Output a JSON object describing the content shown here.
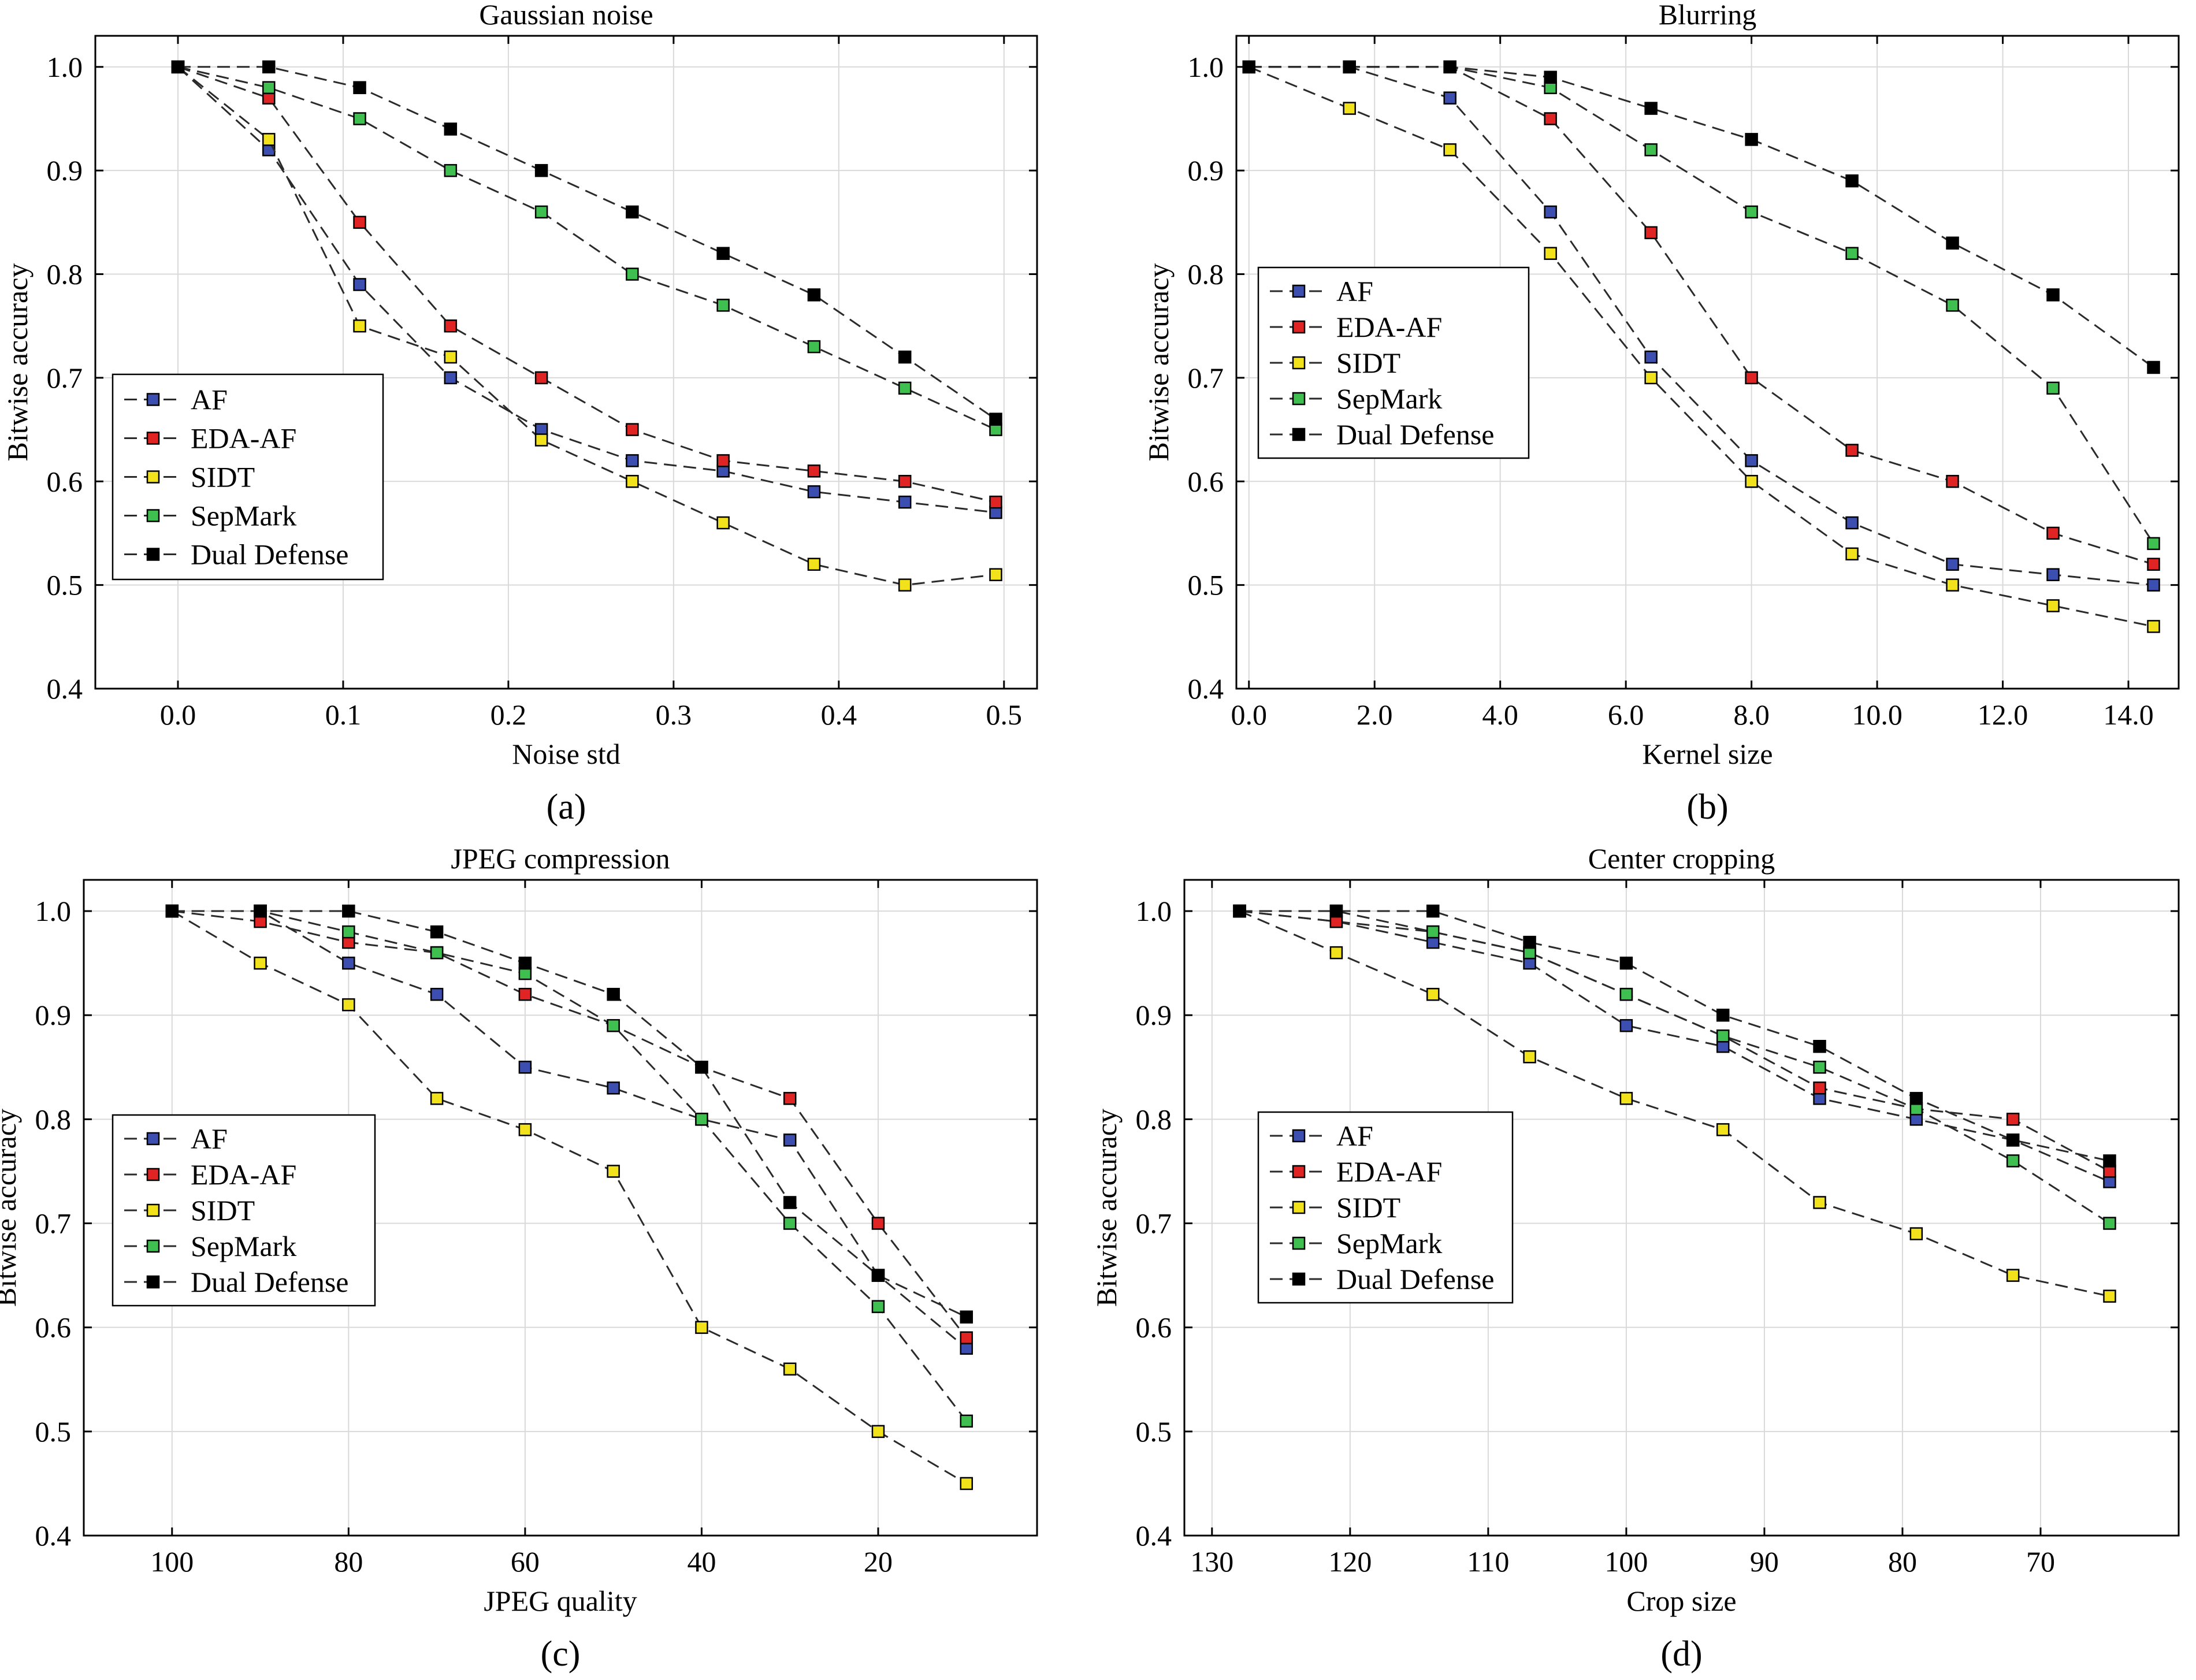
{
  "colors": {
    "AF": "#3c4fb0",
    "EDA-AF": "#e02424",
    "SIDT": "#f2e21c",
    "SepMark": "#3fbf4f",
    "Dual Defense": "#000000"
  },
  "chart_data": [
    {
      "type": "line",
      "title": "Gaussian noise",
      "xlabel": "Noise std",
      "ylabel": "Bitwise accuracy",
      "caption": "(a)",
      "xlim": [
        -0.05,
        0.52
      ],
      "ylim": [
        0.4,
        1.03
      ],
      "xticks": [
        0.0,
        0.1,
        0.2,
        0.3,
        0.4,
        0.5
      ],
      "xtick_labels": [
        "0.0",
        "0.1",
        "0.2",
        "0.3",
        "0.4",
        "0.5"
      ],
      "yticks": [
        0.4,
        0.5,
        0.6,
        0.7,
        0.8,
        0.9,
        1.0
      ],
      "ytick_labels": [
        "0.4",
        "0.5",
        "0.6",
        "0.7",
        "0.8",
        "0.9",
        "1.0"
      ],
      "grid": true,
      "legend_position": "lower-left",
      "x": [
        0.0,
        0.055,
        0.11,
        0.165,
        0.22,
        0.275,
        0.33,
        0.385,
        0.44,
        0.495
      ],
      "series": [
        {
          "name": "AF",
          "values": [
            1.0,
            0.92,
            0.79,
            0.7,
            0.65,
            0.62,
            0.61,
            0.59,
            0.58,
            0.57
          ]
        },
        {
          "name": "EDA-AF",
          "values": [
            1.0,
            0.97,
            0.85,
            0.75,
            0.7,
            0.65,
            0.62,
            0.61,
            0.6,
            0.58
          ]
        },
        {
          "name": "SIDT",
          "values": [
            1.0,
            0.93,
            0.75,
            0.72,
            0.64,
            0.6,
            0.56,
            0.52,
            0.5,
            0.51
          ]
        },
        {
          "name": "SepMark",
          "values": [
            1.0,
            0.98,
            0.95,
            0.9,
            0.86,
            0.8,
            0.77,
            0.73,
            0.69,
            0.65
          ]
        },
        {
          "name": "Dual Defense",
          "values": [
            1.0,
            1.0,
            0.98,
            0.94,
            0.9,
            0.86,
            0.82,
            0.78,
            0.72,
            0.66
          ]
        }
      ]
    },
    {
      "type": "line",
      "title": "Blurring",
      "xlabel": "Kernel size",
      "ylabel": "Bitwise accuracy",
      "caption": "(b)",
      "xlim": [
        -0.2,
        14.8
      ],
      "ylim": [
        0.4,
        1.03
      ],
      "xticks": [
        0,
        2,
        4,
        6,
        8,
        10,
        12,
        14
      ],
      "xtick_labels": [
        "0.0",
        "2.0",
        "4.0",
        "6.0",
        "8.0",
        "10.0",
        "12.0",
        "14.0"
      ],
      "yticks": [
        0.4,
        0.5,
        0.6,
        0.7,
        0.8,
        0.9,
        1.0
      ],
      "ytick_labels": [
        "0.4",
        "0.5",
        "0.6",
        "0.7",
        "0.8",
        "0.9",
        "1.0"
      ],
      "grid": true,
      "legend_position": "middle-left",
      "x": [
        0,
        1.6,
        3.2,
        4.8,
        6.4,
        8.0,
        9.6,
        11.2,
        12.8,
        14.4
      ],
      "series": [
        {
          "name": "AF",
          "values": [
            1.0,
            1.0,
            0.97,
            0.86,
            0.72,
            0.62,
            0.56,
            0.52,
            0.51,
            0.5
          ]
        },
        {
          "name": "EDA-AF",
          "values": [
            1.0,
            1.0,
            1.0,
            0.95,
            0.84,
            0.7,
            0.63,
            0.6,
            0.55,
            0.52
          ]
        },
        {
          "name": "SIDT",
          "values": [
            1.0,
            0.96,
            0.92,
            0.82,
            0.7,
            0.6,
            0.53,
            0.5,
            0.48,
            0.46
          ]
        },
        {
          "name": "SepMark",
          "values": [
            1.0,
            1.0,
            1.0,
            0.98,
            0.92,
            0.86,
            0.82,
            0.77,
            0.69,
            0.54
          ]
        },
        {
          "name": "Dual Defense",
          "values": [
            1.0,
            1.0,
            1.0,
            0.99,
            0.96,
            0.93,
            0.89,
            0.83,
            0.78,
            0.71
          ]
        }
      ]
    },
    {
      "type": "line",
      "title": "JPEG compression",
      "xlabel": "JPEG quality",
      "ylabel": "Bitwise accuracy",
      "caption": "(c)",
      "xlim": [
        110,
        2
      ],
      "ylim": [
        0.4,
        1.03
      ],
      "xticks": [
        100,
        80,
        60,
        40,
        20
      ],
      "xtick_labels": [
        "100",
        "80",
        "60",
        "40",
        "20"
      ],
      "yticks": [
        0.4,
        0.5,
        0.6,
        0.7,
        0.8,
        0.9,
        1.0
      ],
      "ytick_labels": [
        "0.4",
        "0.5",
        "0.6",
        "0.7",
        "0.8",
        "0.9",
        "1.0"
      ],
      "grid": true,
      "legend_position": "lower-left",
      "x": [
        100,
        90,
        80,
        70,
        60,
        50,
        40,
        30,
        20,
        10
      ],
      "series": [
        {
          "name": "AF",
          "values": [
            1.0,
            1.0,
            0.95,
            0.92,
            0.85,
            0.83,
            0.8,
            0.78,
            0.65,
            0.58
          ]
        },
        {
          "name": "EDA-AF",
          "values": [
            1.0,
            0.99,
            0.97,
            0.96,
            0.92,
            0.89,
            0.85,
            0.82,
            0.7,
            0.59
          ]
        },
        {
          "name": "SIDT",
          "values": [
            1.0,
            0.95,
            0.91,
            0.82,
            0.79,
            0.75,
            0.6,
            0.56,
            0.5,
            0.45
          ]
        },
        {
          "name": "SepMark",
          "values": [
            1.0,
            1.0,
            0.98,
            0.96,
            0.94,
            0.89,
            0.8,
            0.7,
            0.62,
            0.51
          ]
        },
        {
          "name": "Dual Defense",
          "values": [
            1.0,
            1.0,
            1.0,
            0.98,
            0.95,
            0.92,
            0.85,
            0.72,
            0.65,
            0.61
          ]
        }
      ]
    },
    {
      "type": "line",
      "title": "Center cropping",
      "xlabel": "Crop size",
      "ylabel": "Bitwise accuracy",
      "caption": "(d)",
      "xlim": [
        132,
        60
      ],
      "ylim": [
        0.4,
        1.03
      ],
      "xticks": [
        130,
        120,
        110,
        100,
        90,
        80,
        70
      ],
      "xtick_labels": [
        "130",
        "120",
        "110",
        "100",
        "90",
        "80",
        "70"
      ],
      "yticks": [
        0.4,
        0.5,
        0.6,
        0.7,
        0.8,
        0.9,
        1.0
      ],
      "ytick_labels": [
        "0.4",
        "0.5",
        "0.6",
        "0.7",
        "0.8",
        "0.9",
        "1.0"
      ],
      "grid": true,
      "legend_position": "lower-left",
      "x": [
        128,
        121,
        114,
        107,
        100,
        93,
        86,
        79,
        72,
        65
      ],
      "series": [
        {
          "name": "AF",
          "values": [
            1.0,
            0.99,
            0.97,
            0.95,
            0.89,
            0.87,
            0.82,
            0.8,
            0.78,
            0.74
          ]
        },
        {
          "name": "EDA-AF",
          "values": [
            1.0,
            0.99,
            0.98,
            0.96,
            0.92,
            0.88,
            0.83,
            0.81,
            0.8,
            0.75
          ]
        },
        {
          "name": "SIDT",
          "values": [
            1.0,
            0.96,
            0.92,
            0.86,
            0.82,
            0.79,
            0.72,
            0.69,
            0.65,
            0.63
          ]
        },
        {
          "name": "SepMark",
          "values": [
            1.0,
            1.0,
            0.98,
            0.96,
            0.92,
            0.88,
            0.85,
            0.81,
            0.76,
            0.7
          ]
        },
        {
          "name": "Dual Defense",
          "values": [
            1.0,
            1.0,
            1.0,
            0.97,
            0.95,
            0.9,
            0.87,
            0.82,
            0.78,
            0.76
          ]
        }
      ]
    }
  ]
}
